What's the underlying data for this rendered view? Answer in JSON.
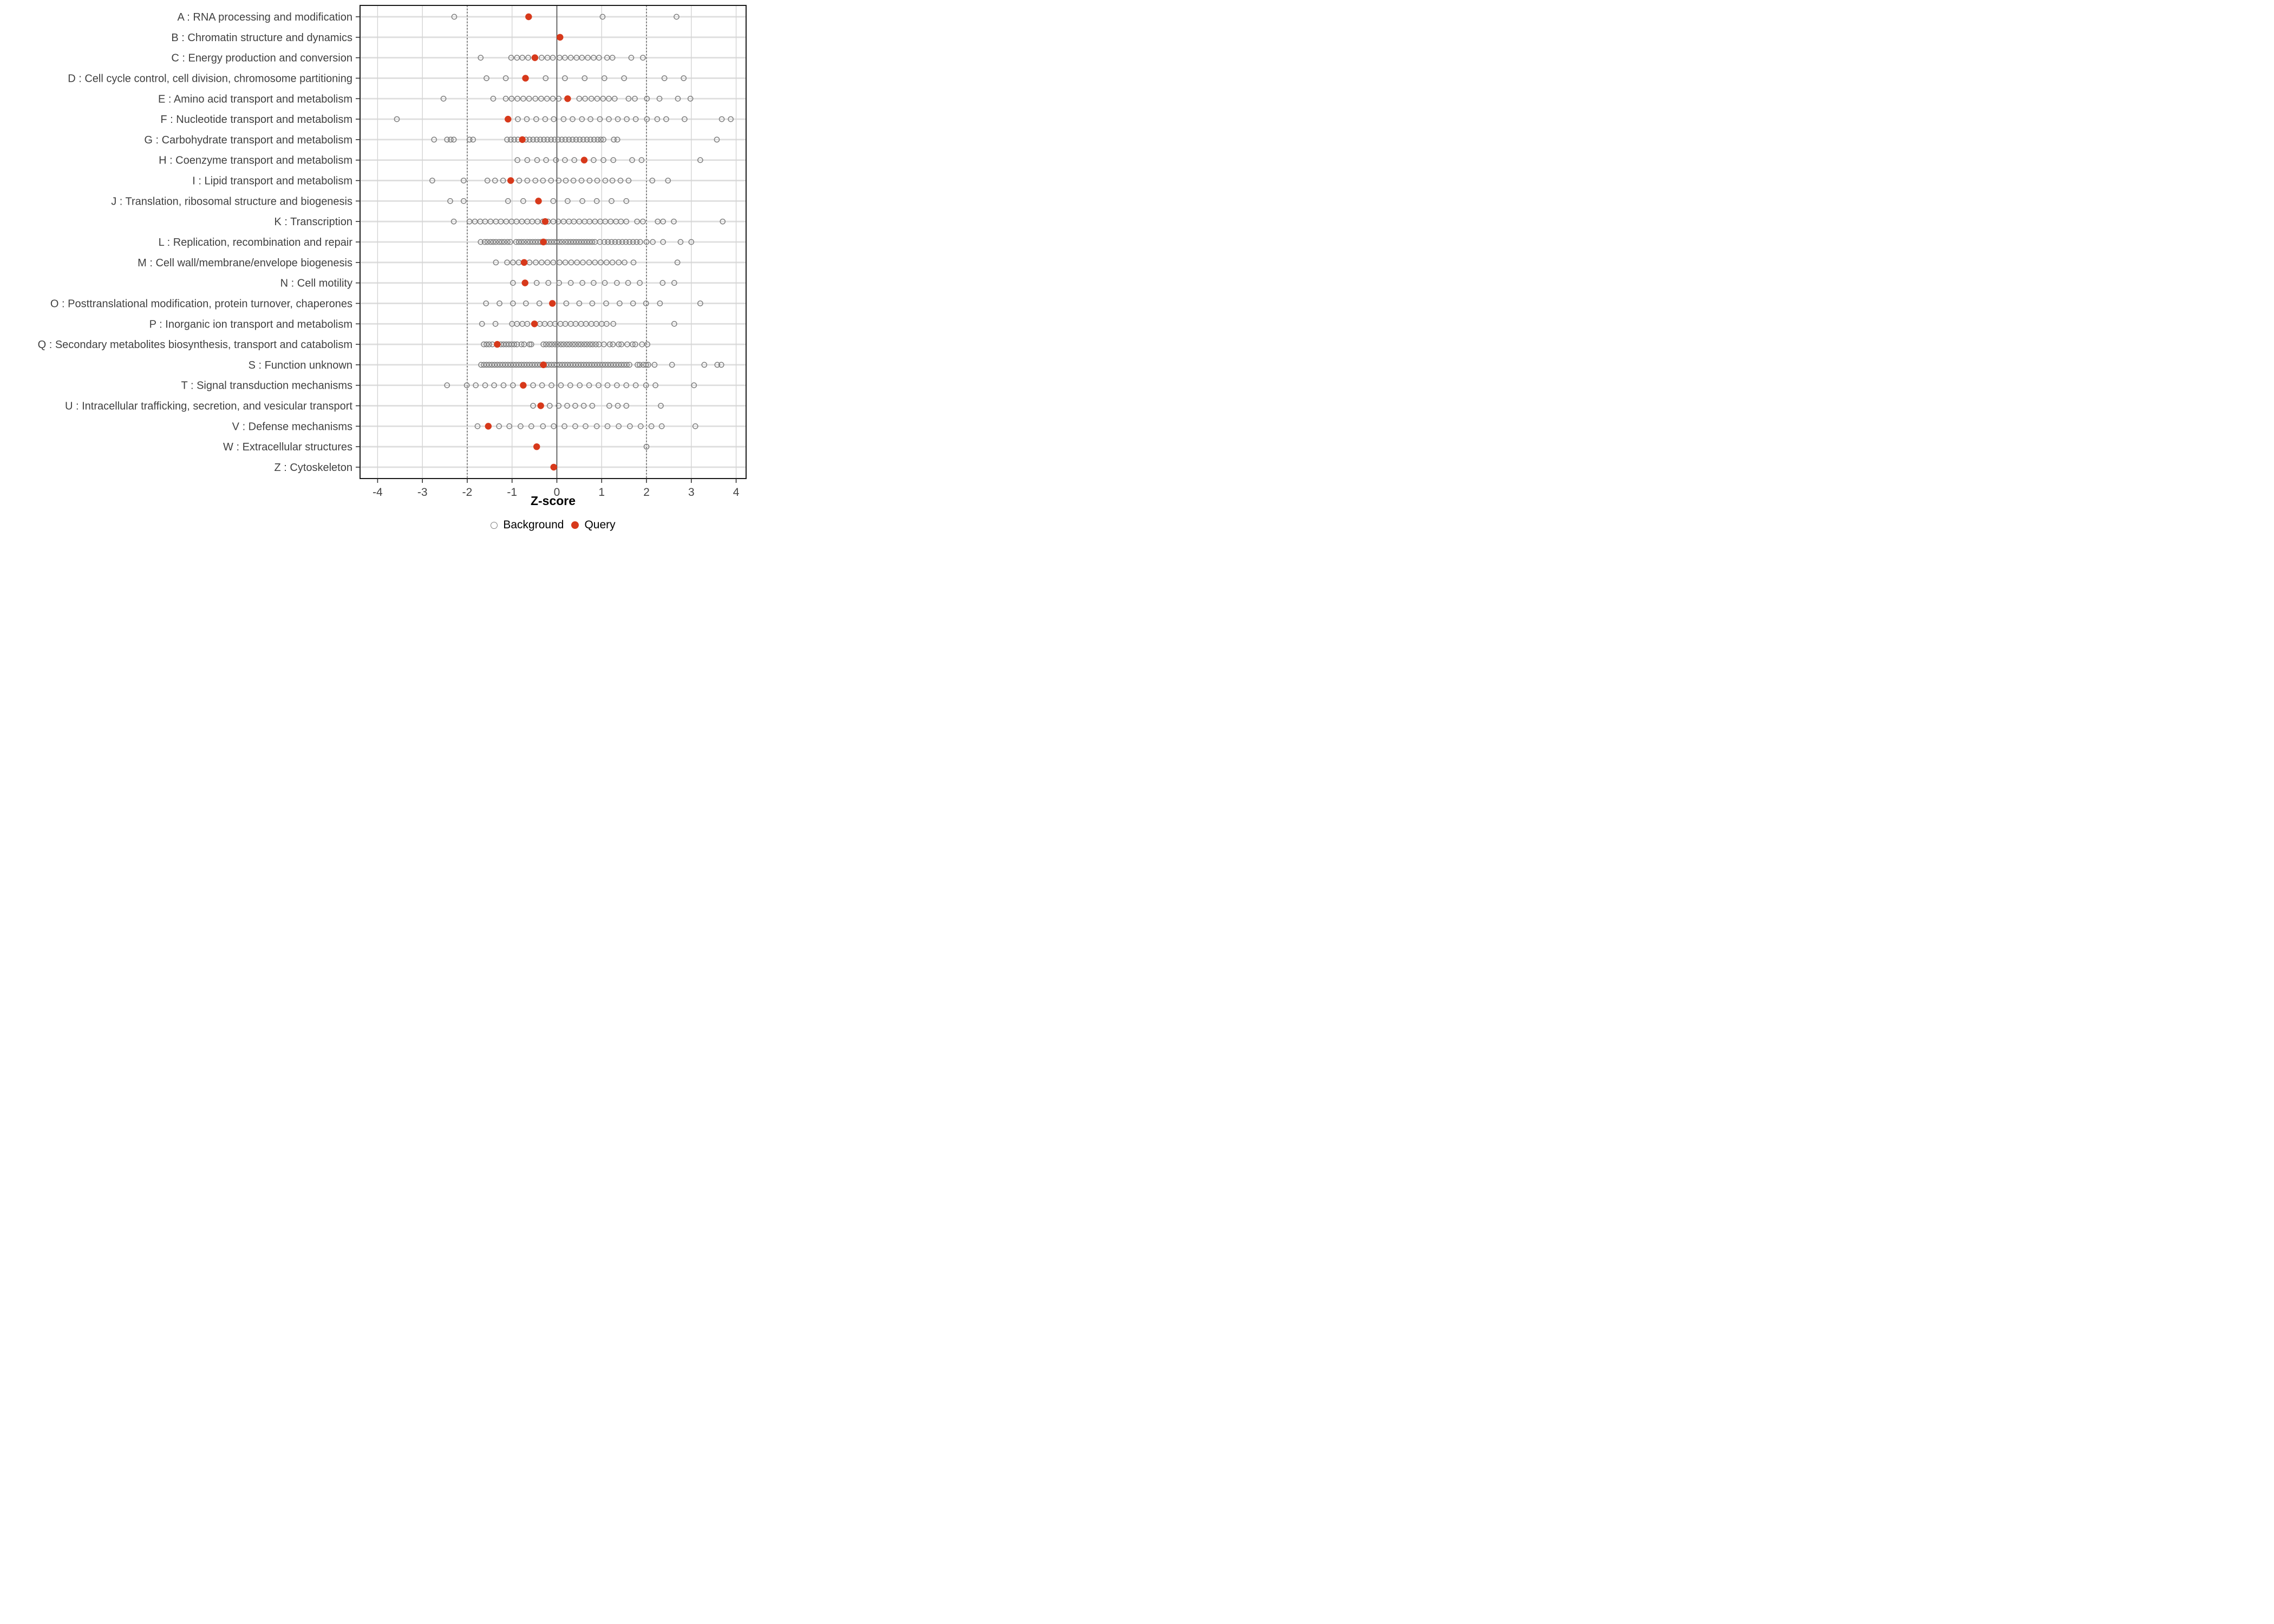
{
  "chart_data": {
    "type": "scatter",
    "variant": "one-dimensional strip plot per category (COG categories vs Z-score)",
    "title": "",
    "xlabel": "Z-score",
    "ylabel": "",
    "x_ticks": [
      -4,
      -3,
      -2,
      -1,
      0,
      1,
      2,
      3,
      4
    ],
    "xlim": [
      -4.39,
      4.22
    ],
    "grid": "light vertical line at every integer, light horizontal line at every category row",
    "reference_lines": {
      "solid_at": 0,
      "dashed_at": [
        -2,
        2
      ]
    },
    "legend_position": "bottom-center",
    "colors": {
      "query": "#D7391B",
      "background_stroke": "#7F7F7F",
      "row_line": "#DEDEDE",
      "grid_line": "#D4D4D4",
      "ref_dashed": "#5A5A5A",
      "ref_solid": "#4A4A4A",
      "panel_border": "#1A1A1A",
      "tick_text": "#444444",
      "label_text": "#404040"
    },
    "series_legend": [
      {
        "name": "Background",
        "marker": "open-gray-circle"
      },
      {
        "name": "Query",
        "marker": "filled-red-circle"
      }
    ],
    "categories": [
      {
        "label": "A : RNA processing and modification",
        "query": -0.63,
        "background": [
          -2.29,
          1.02,
          2.67
        ]
      },
      {
        "label": "B : Chromatin structure and dynamics",
        "query": 0.07,
        "background": []
      },
      {
        "label": "C : Energy production and conversion",
        "query": -0.49,
        "background": [
          -1.7,
          -1.02,
          -0.89,
          -0.77,
          -0.64,
          -0.34,
          -0.21,
          -0.09,
          0.06,
          0.18,
          0.31,
          0.44,
          0.56,
          0.69,
          0.82,
          0.94,
          1.12,
          1.24,
          1.66,
          1.92
        ]
      },
      {
        "label": "D : Cell cycle control, cell division, chromosome partitioning",
        "query": -0.7,
        "background": [
          -1.57,
          -1.14,
          -0.25,
          0.18,
          0.62,
          1.06,
          1.5,
          2.4,
          2.83
        ]
      },
      {
        "label": "E : Amino acid transport and metabolism",
        "query": 0.24,
        "background": [
          -2.53,
          -1.42,
          -1.14,
          -1.01,
          -0.88,
          -0.75,
          -0.62,
          -0.48,
          -0.35,
          -0.22,
          -0.09,
          0.04,
          0.5,
          0.63,
          0.77,
          0.9,
          1.03,
          1.16,
          1.29,
          1.6,
          1.74,
          2.01,
          2.29,
          2.7,
          2.98
        ]
      },
      {
        "label": "F : Nucleotide transport and metabolism",
        "query": -1.09,
        "background": [
          -3.57,
          -0.87,
          -0.67,
          -0.46,
          -0.26,
          -0.07,
          0.15,
          0.35,
          0.56,
          0.75,
          0.96,
          1.16,
          1.36,
          1.56,
          1.76,
          2.01,
          2.24,
          2.44,
          2.85,
          3.68,
          3.88
        ]
      },
      {
        "label": "G : Carbohydrate transport and metabolism",
        "query": -0.77,
        "background": [
          -2.74,
          -2.45,
          -2.37,
          -2.3,
          -1.95,
          -1.87,
          -1.11,
          -1.03,
          -0.95,
          -0.87,
          -0.69,
          -0.61,
          -0.53,
          -0.45,
          -0.37,
          -0.29,
          -0.21,
          -0.13,
          -0.05,
          0.03,
          0.11,
          0.19,
          0.27,
          0.35,
          0.43,
          0.51,
          0.59,
          0.67,
          0.75,
          0.83,
          0.91,
          0.98,
          1.04,
          1.27,
          1.35,
          3.57
        ]
      },
      {
        "label": "H : Coenzyme transport and metabolism",
        "query": 0.61,
        "background": [
          -0.88,
          -0.66,
          -0.44,
          -0.24,
          -0.02,
          0.18,
          0.39,
          0.82,
          1.04,
          1.26,
          1.68,
          1.89,
          3.2
        ]
      },
      {
        "label": "I : Lipid transport and metabolism",
        "query": -1.03,
        "background": [
          -2.78,
          -2.08,
          -1.55,
          -1.38,
          -1.2,
          -0.84,
          -0.66,
          -0.48,
          -0.31,
          -0.13,
          0.04,
          0.2,
          0.37,
          0.55,
          0.73,
          0.9,
          1.08,
          1.24,
          1.42,
          1.6,
          2.13,
          2.48
        ]
      },
      {
        "label": "J : Translation, ribosomal structure and biogenesis",
        "query": -0.41,
        "background": [
          -2.38,
          -2.08,
          -1.09,
          -0.75,
          -0.08,
          0.24,
          0.57,
          0.89,
          1.22,
          1.55
        ]
      },
      {
        "label": "K : Transcription",
        "query": -0.26,
        "background": [
          -2.3,
          -1.95,
          -1.83,
          -1.71,
          -1.6,
          -1.48,
          -1.36,
          -1.25,
          -1.13,
          -1.01,
          -0.9,
          -0.78,
          -0.66,
          -0.55,
          -0.43,
          -0.31,
          -0.2,
          -0.08,
          0.03,
          0.15,
          0.27,
          0.38,
          0.5,
          0.62,
          0.73,
          0.85,
          0.97,
          1.08,
          1.2,
          1.32,
          1.43,
          1.55,
          1.79,
          1.92,
          2.25,
          2.37,
          2.61,
          3.7
        ]
      },
      {
        "label": "L : Replication, recombination and repair",
        "query": -0.3,
        "background": [
          -1.7,
          -1.61,
          -1.55,
          -1.48,
          -1.42,
          -1.36,
          -1.29,
          -1.23,
          -1.17,
          -1.1,
          -1.04,
          -0.91,
          -0.85,
          -0.79,
          -0.73,
          -0.66,
          -0.6,
          -0.54,
          -0.48,
          -0.42,
          -0.36,
          -0.24,
          -0.18,
          -0.12,
          -0.06,
          0.0,
          0.06,
          0.12,
          0.19,
          0.25,
          0.31,
          0.37,
          0.43,
          0.49,
          0.55,
          0.61,
          0.67,
          0.73,
          0.79,
          0.85,
          0.96,
          1.06,
          1.14,
          1.22,
          1.3,
          1.38,
          1.46,
          1.54,
          1.62,
          1.7,
          1.78,
          1.86,
          2.0,
          2.14,
          2.37,
          2.76,
          3.0
        ]
      },
      {
        "label": "M : Cell wall/membrane/envelope biogenesis",
        "query": -0.73,
        "background": [
          -1.36,
          -1.11,
          -0.98,
          -0.85,
          -0.61,
          -0.47,
          -0.34,
          -0.21,
          -0.08,
          0.06,
          0.19,
          0.32,
          0.45,
          0.58,
          0.72,
          0.85,
          0.98,
          1.11,
          1.24,
          1.38,
          1.51,
          1.71,
          2.69
        ]
      },
      {
        "label": "N : Cell motility",
        "query": -0.71,
        "background": [
          -0.98,
          -0.45,
          -0.19,
          0.05,
          0.31,
          0.57,
          0.82,
          1.07,
          1.34,
          1.59,
          1.85,
          2.36,
          2.62
        ]
      },
      {
        "label": "O : Posttranslational modification, protein turnover, chaperones",
        "query": -0.1,
        "background": [
          -1.58,
          -1.28,
          -0.98,
          -0.69,
          -0.39,
          0.21,
          0.5,
          0.79,
          1.1,
          1.4,
          1.7,
          1.99,
          2.3,
          3.2
        ]
      },
      {
        "label": "P : Inorganic ion transport and metabolism",
        "query": -0.5,
        "background": [
          -1.67,
          -1.37,
          -1.0,
          -0.89,
          -0.77,
          -0.66,
          -0.38,
          -0.27,
          -0.15,
          -0.04,
          0.08,
          0.19,
          0.31,
          0.42,
          0.54,
          0.65,
          0.77,
          0.88,
          1.0,
          1.11,
          1.26,
          2.62
        ]
      },
      {
        "label": "Q : Secondary metabolites biosynthesis, transport and catabolism",
        "query": -1.33,
        "background": [
          -1.63,
          -1.57,
          -1.51,
          -1.44,
          -1.25,
          -1.19,
          -1.13,
          -1.07,
          -1.01,
          -0.95,
          -0.89,
          -0.79,
          -0.73,
          -0.61,
          -0.57,
          -0.3,
          -0.24,
          -0.17,
          -0.11,
          -0.04,
          0.02,
          0.09,
          0.15,
          0.22,
          0.28,
          0.35,
          0.41,
          0.48,
          0.54,
          0.61,
          0.67,
          0.74,
          0.8,
          0.87,
          0.94,
          1.05,
          1.18,
          1.25,
          1.38,
          1.44,
          1.57,
          1.69,
          1.75,
          1.9,
          2.02
        ]
      },
      {
        "label": "S : Function unknown",
        "query": -0.3,
        "background": [
          -1.69,
          -1.63,
          -1.57,
          -1.51,
          -1.45,
          -1.39,
          -1.33,
          -1.27,
          -1.21,
          -1.15,
          -1.09,
          -1.03,
          -0.97,
          -0.91,
          -0.85,
          -0.79,
          -0.73,
          -0.67,
          -0.61,
          -0.55,
          -0.49,
          -0.43,
          -0.37,
          -0.24,
          -0.18,
          -0.12,
          -0.06,
          0.0,
          0.06,
          0.12,
          0.18,
          0.24,
          0.3,
          0.36,
          0.42,
          0.48,
          0.54,
          0.6,
          0.66,
          0.72,
          0.78,
          0.84,
          0.9,
          0.96,
          1.02,
          1.08,
          1.14,
          1.2,
          1.26,
          1.32,
          1.38,
          1.44,
          1.5,
          1.56,
          1.62,
          1.8,
          1.85,
          1.93,
          1.99,
          2.04,
          2.18,
          2.57,
          3.29,
          3.58,
          3.67
        ]
      },
      {
        "label": "T : Signal transduction mechanisms",
        "query": -0.75,
        "background": [
          -2.45,
          -2.01,
          -1.81,
          -1.6,
          -1.4,
          -1.19,
          -0.98,
          -0.53,
          -0.33,
          -0.12,
          0.09,
          0.3,
          0.51,
          0.72,
          0.93,
          1.13,
          1.34,
          1.55,
          1.76,
          1.99,
          2.2,
          3.06
        ]
      },
      {
        "label": "U : Intracellular trafficking, secretion, and vesicular transport",
        "query": -0.36,
        "background": [
          -0.53,
          -0.16,
          0.04,
          0.23,
          0.41,
          0.6,
          0.79,
          1.17,
          1.36,
          1.55,
          2.32
        ]
      },
      {
        "label": "V : Defense mechanisms",
        "query": -1.53,
        "background": [
          -1.77,
          -1.29,
          -1.06,
          -0.81,
          -0.57,
          -0.31,
          -0.07,
          0.17,
          0.41,
          0.64,
          0.89,
          1.13,
          1.38,
          1.63,
          1.87,
          2.11,
          2.34,
          3.09
        ]
      },
      {
        "label": "W : Extracellular structures",
        "query": -0.45,
        "background": [
          2.0
        ]
      },
      {
        "label": "Z : Cytoskeleton",
        "query": -0.07,
        "background": []
      }
    ]
  },
  "axis": {
    "title": "Z-score"
  },
  "legend": {
    "background_label": "Background",
    "query_label": "Query"
  }
}
